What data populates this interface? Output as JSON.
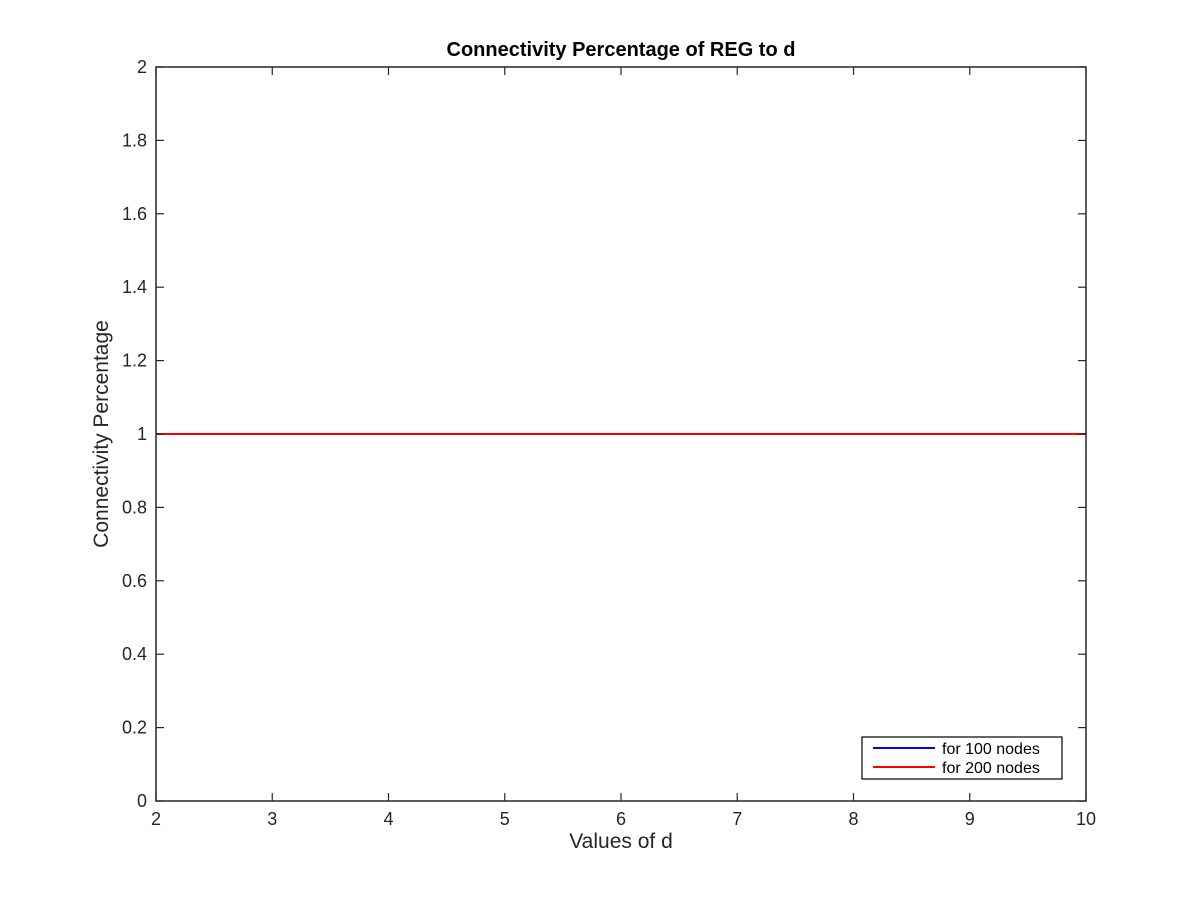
{
  "chart_data": {
    "type": "line",
    "title": "Connectivity Percentage of REG to d",
    "xlabel": "Values of d",
    "ylabel": "Connectivity Percentage",
    "xlim": [
      2,
      10
    ],
    "ylim": [
      0,
      2
    ],
    "xticks": [
      2,
      3,
      4,
      5,
      6,
      7,
      8,
      9,
      10
    ],
    "yticks": [
      0,
      0.2,
      0.4,
      0.6,
      0.8,
      1,
      1.2,
      1.4,
      1.6,
      1.8,
      2
    ],
    "x": [
      2,
      3,
      4,
      5,
      6,
      7,
      8,
      9,
      10
    ],
    "series": [
      {
        "name": "for 100 nodes",
        "color": "#0000ff",
        "values": [
          1,
          1,
          1,
          1,
          1,
          1,
          1,
          1,
          1
        ]
      },
      {
        "name": "for 200 nodes",
        "color": "#ff0000",
        "values": [
          1,
          1,
          1,
          1,
          1,
          1,
          1,
          1,
          1
        ]
      }
    ],
    "grid": false,
    "legend_position": "bottom-right"
  }
}
